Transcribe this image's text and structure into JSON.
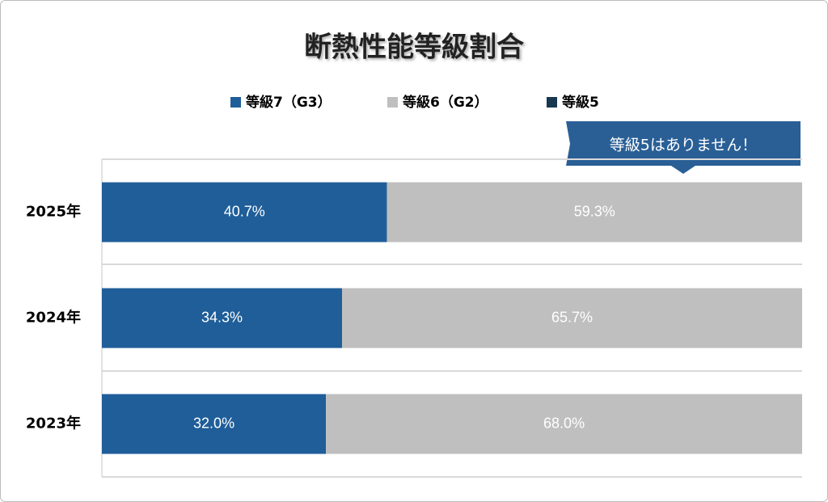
{
  "chart_data": {
    "type": "stacked_bar_horizontal",
    "title": "断熱性能等級割合",
    "categories": [
      "2025年",
      "2024年",
      "2023年"
    ],
    "series": [
      {
        "name": "等級7（G3）",
        "color": "#1f5e99",
        "values": [
          40.7,
          34.3,
          32.0
        ],
        "value_labels": [
          "40.7%",
          "34.3%",
          "32.0%"
        ]
      },
      {
        "name": "等級6（G2）",
        "color": "#bfbfbf",
        "values": [
          59.3,
          65.7,
          68.0
        ],
        "value_labels": [
          "59.3%",
          "65.7%",
          "68.0%"
        ]
      },
      {
        "name": "等級5",
        "color": "#17384f",
        "values": [
          0,
          0,
          0
        ]
      }
    ],
    "xlim": [
      0,
      100
    ],
    "annotation": "等級5はありません！",
    "legend": "top"
  }
}
